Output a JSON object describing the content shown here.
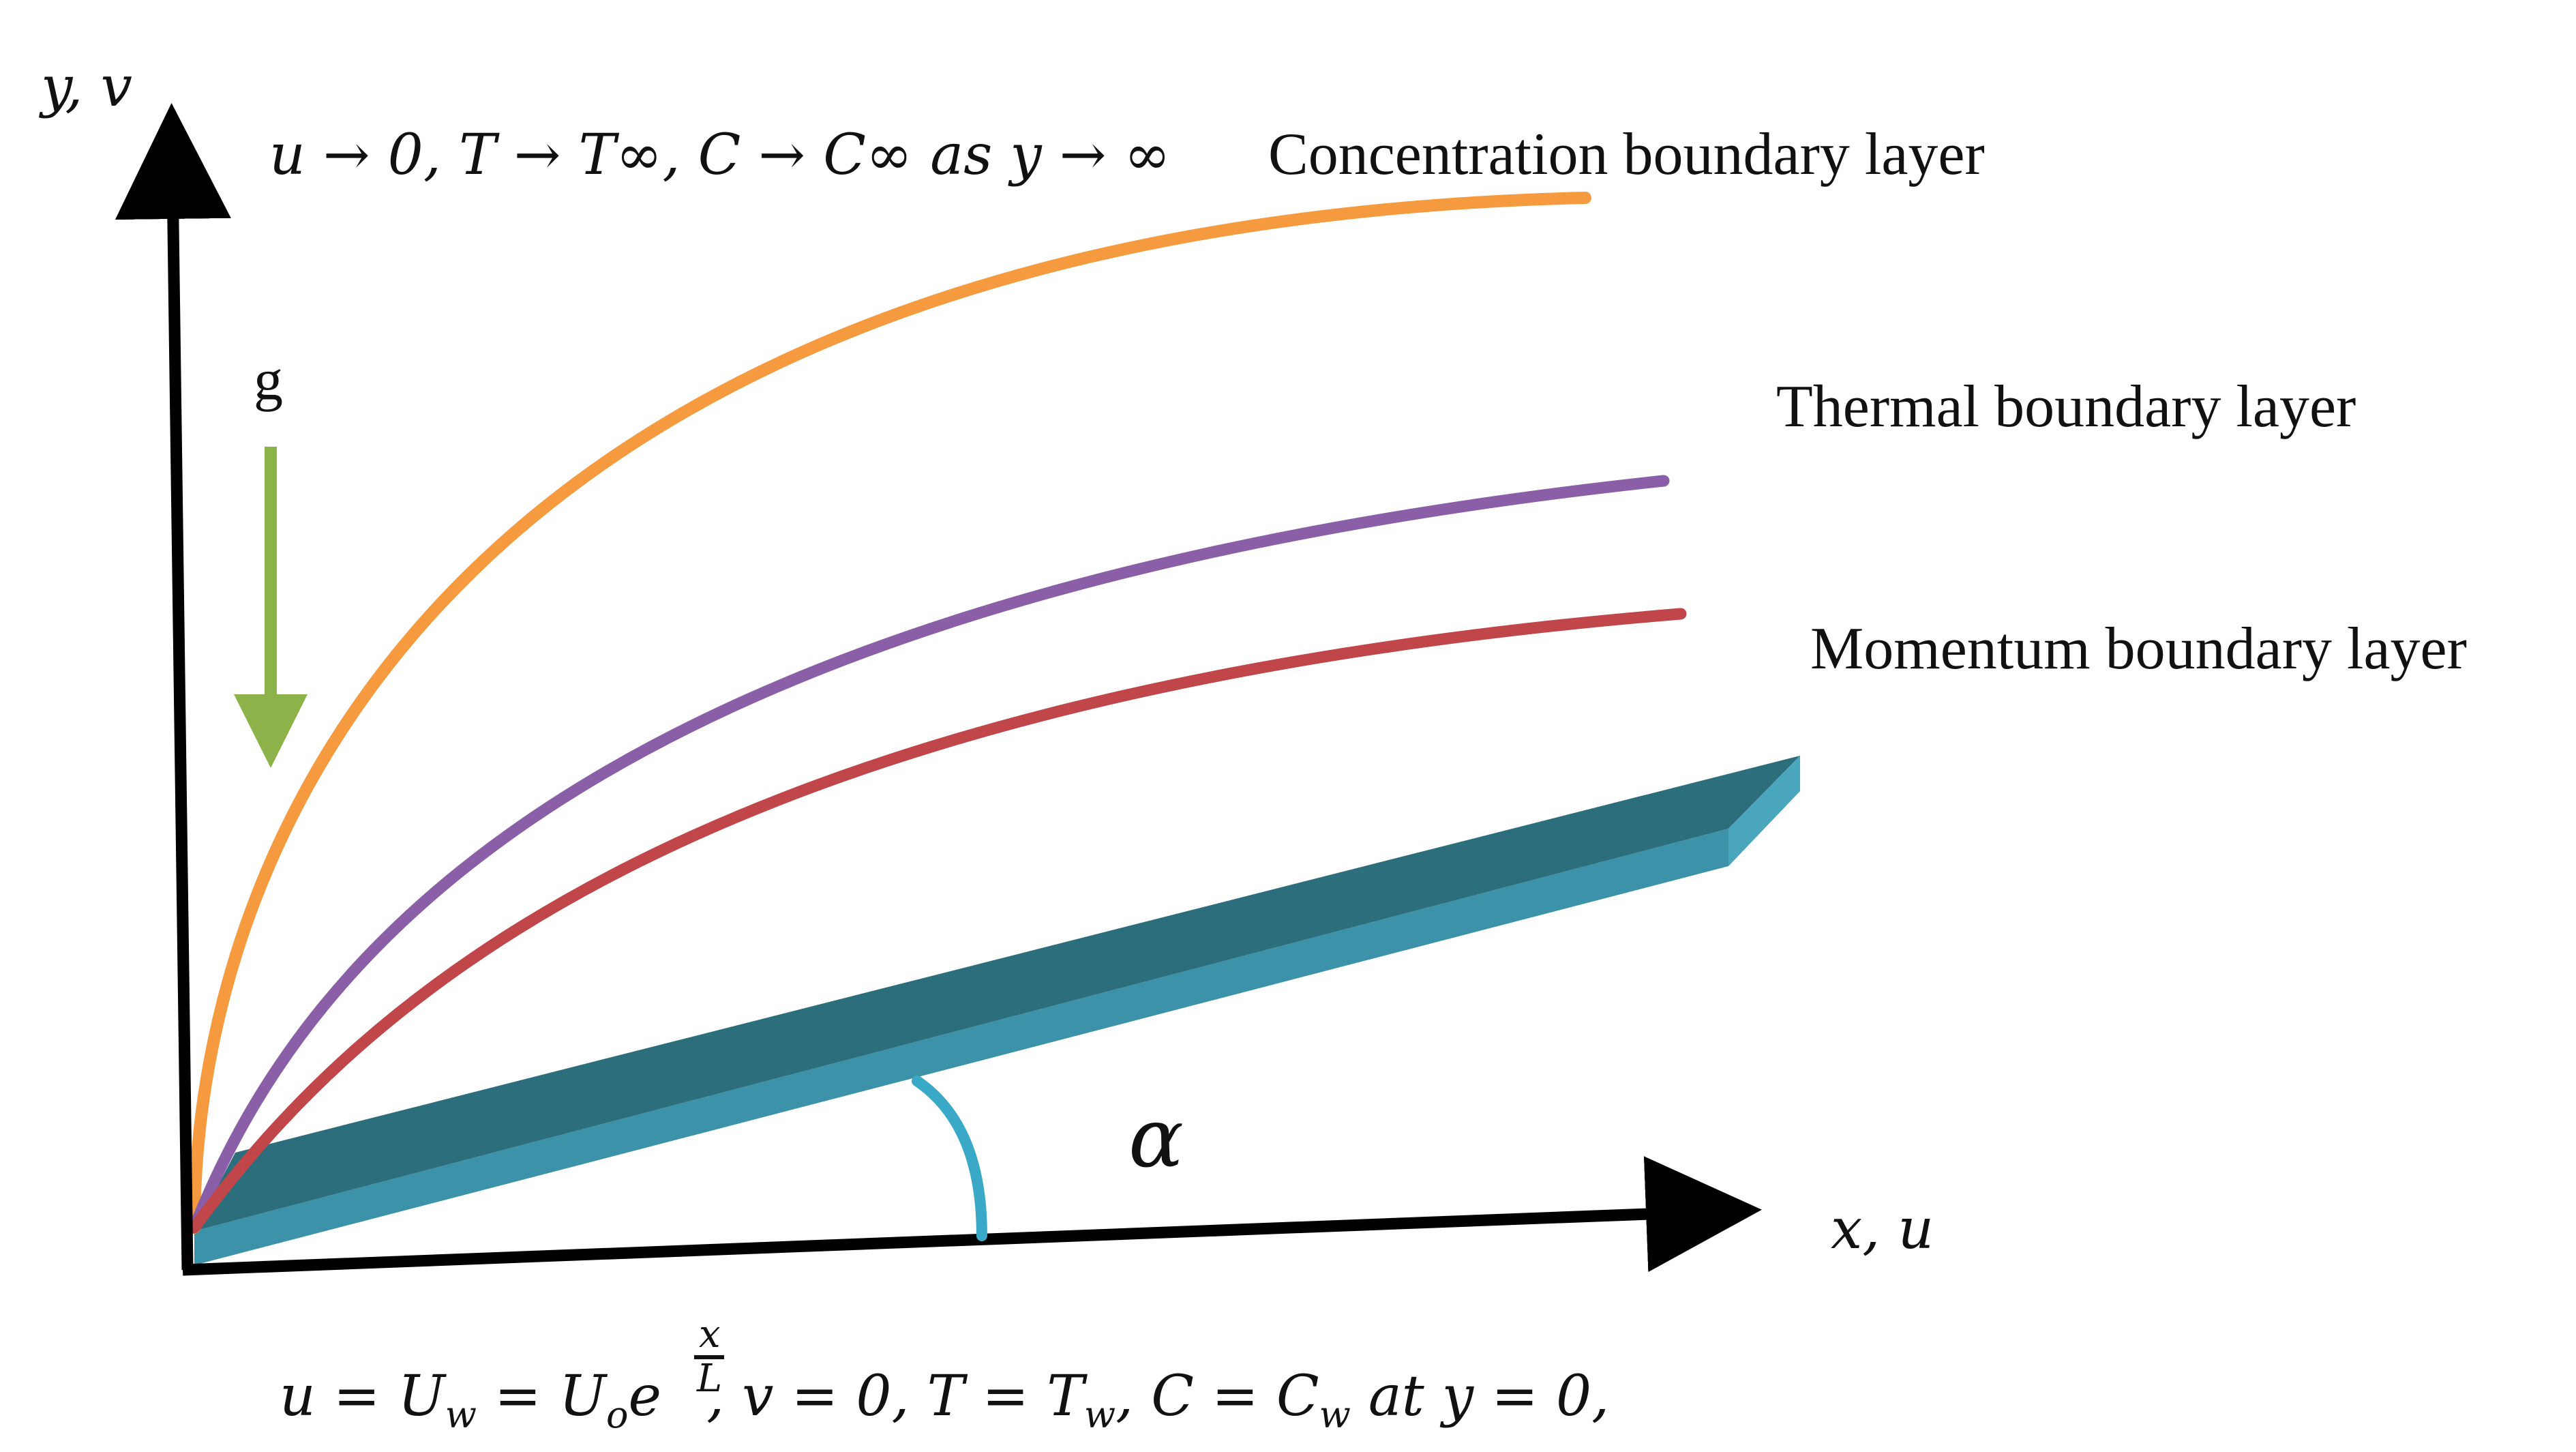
{
  "axes": {
    "y_label": "y, v",
    "x_label": "x, u"
  },
  "far_field_condition": "u → 0, T → T∞, C → C∞ as y → ∞",
  "wall_condition": {
    "part1": "u = U",
    "sub1": "w",
    "part2": " = U",
    "sub2": "o",
    "part3": "e",
    "exp_num": "x",
    "exp_den": "L",
    "part4": ", v = 0, T = T",
    "sub3": "w",
    "part5": ", C = C",
    "sub4": "w",
    "part6": " at y = 0,"
  },
  "gravity_label": "g",
  "angle_label": "α",
  "layers": {
    "concentration": "Concentration boundary layer",
    "thermal": "Thermal boundary layer",
    "momentum": "Momentum boundary layer"
  },
  "colors": {
    "concentration": "#f59a3e",
    "thermal": "#8a5fa8",
    "momentum": "#c0464a",
    "plate_top": "#2d6e7c",
    "plate_front": "#3c92a8",
    "plate_end": "#4aa6bd",
    "gravity": "#8cb24a",
    "angle_arc": "#3aa9c8",
    "axis": "#000000"
  }
}
